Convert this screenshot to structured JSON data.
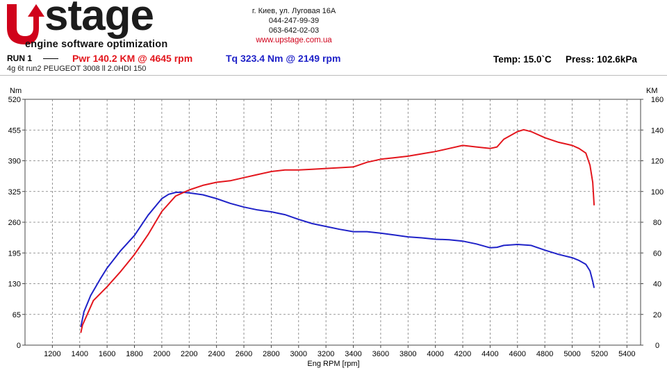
{
  "header": {
    "logo_text": "stage",
    "logo_tagline": "engine software optimization",
    "address": "г. Киев, ул. Луговая 16А",
    "phone1": "044-247-99-39",
    "phone2": "063-642-02-03",
    "website": "www.upstage.com.ua"
  },
  "run": {
    "label": "RUN 1",
    "power": "Pwr  140.2 KM @ 4645 rpm",
    "torque": "Tq 323.4 Nm @ 2149 rpm",
    "vehicle": "4g 6t run2 PEUGEOT 3008 ll 2.0HDI 150",
    "temp": "Temp: 15.0`C",
    "pressure": "Press: 102.6kPa"
  },
  "colors": {
    "power": "#e3161d",
    "torque": "#1f22c8",
    "brand": "#d0021b"
  },
  "chart_data": {
    "type": "line",
    "xlabel": "Eng RPM [rpm]",
    "ylabel_left": "Nm",
    "ylabel_right": "KM",
    "xlim": [
      1000,
      5500
    ],
    "ylim_left": [
      0,
      520
    ],
    "ylim_right": [
      0,
      160
    ],
    "x_ticks": [
      1200,
      1400,
      1600,
      1800,
      2000,
      2200,
      2400,
      2600,
      2800,
      3000,
      3200,
      3400,
      3600,
      3800,
      4000,
      4200,
      4400,
      4600,
      4800,
      5000,
      5200,
      5400
    ],
    "y_ticks_left": [
      0,
      65,
      130,
      195,
      260,
      325,
      390,
      455,
      520
    ],
    "y_ticks_right": [
      0,
      20,
      40,
      60,
      80,
      100,
      120,
      140,
      160
    ],
    "grid": true,
    "series": [
      {
        "name": "Tq",
        "axis": "left",
        "points": [
          [
            1408,
            38
          ],
          [
            1430,
            70
          ],
          [
            1480,
            105
          ],
          [
            1550,
            140
          ],
          [
            1600,
            163
          ],
          [
            1700,
            200
          ],
          [
            1800,
            232
          ],
          [
            1900,
            275
          ],
          [
            2000,
            310
          ],
          [
            2050,
            319
          ],
          [
            2100,
            323
          ],
          [
            2149,
            323.4
          ],
          [
            2200,
            322
          ],
          [
            2300,
            318
          ],
          [
            2400,
            310
          ],
          [
            2500,
            300
          ],
          [
            2600,
            292
          ],
          [
            2700,
            286
          ],
          [
            2800,
            282
          ],
          [
            2900,
            276
          ],
          [
            3000,
            266
          ],
          [
            3100,
            257
          ],
          [
            3200,
            251
          ],
          [
            3300,
            245
          ],
          [
            3400,
            240
          ],
          [
            3500,
            240
          ],
          [
            3600,
            237
          ],
          [
            3700,
            233
          ],
          [
            3800,
            229
          ],
          [
            3900,
            227
          ],
          [
            4000,
            224
          ],
          [
            4100,
            223
          ],
          [
            4200,
            220
          ],
          [
            4300,
            214
          ],
          [
            4400,
            206
          ],
          [
            4450,
            207
          ],
          [
            4500,
            211
          ],
          [
            4600,
            213
          ],
          [
            4700,
            211
          ],
          [
            4800,
            201
          ],
          [
            4900,
            192
          ],
          [
            5000,
            185
          ],
          [
            5050,
            179
          ],
          [
            5100,
            171
          ],
          [
            5130,
            157
          ],
          [
            5150,
            135
          ],
          [
            5160,
            121
          ]
        ]
      },
      {
        "name": "Pwr",
        "axis": "right",
        "points": [
          [
            1408,
            8
          ],
          [
            1420,
            13
          ],
          [
            1500,
            29
          ],
          [
            1600,
            38
          ],
          [
            1700,
            48
          ],
          [
            1800,
            59
          ],
          [
            1900,
            72
          ],
          [
            2000,
            87
          ],
          [
            2100,
            97
          ],
          [
            2200,
            101
          ],
          [
            2300,
            104
          ],
          [
            2400,
            106
          ],
          [
            2500,
            107
          ],
          [
            2600,
            109
          ],
          [
            2700,
            111
          ],
          [
            2800,
            113
          ],
          [
            2900,
            114
          ],
          [
            3000,
            114
          ],
          [
            3100,
            114.5
          ],
          [
            3200,
            115
          ],
          [
            3300,
            115.5
          ],
          [
            3400,
            116
          ],
          [
            3500,
            119
          ],
          [
            3600,
            121
          ],
          [
            3700,
            122
          ],
          [
            3800,
            123
          ],
          [
            3900,
            124.5
          ],
          [
            4000,
            126
          ],
          [
            4100,
            128
          ],
          [
            4200,
            130
          ],
          [
            4300,
            129
          ],
          [
            4400,
            128
          ],
          [
            4450,
            129
          ],
          [
            4500,
            134
          ],
          [
            4600,
            139
          ],
          [
            4645,
            140.2
          ],
          [
            4700,
            139
          ],
          [
            4800,
            135
          ],
          [
            4900,
            132
          ],
          [
            5000,
            130
          ],
          [
            5050,
            128
          ],
          [
            5100,
            125
          ],
          [
            5130,
            117
          ],
          [
            5150,
            106
          ],
          [
            5160,
            91
          ]
        ]
      }
    ]
  }
}
